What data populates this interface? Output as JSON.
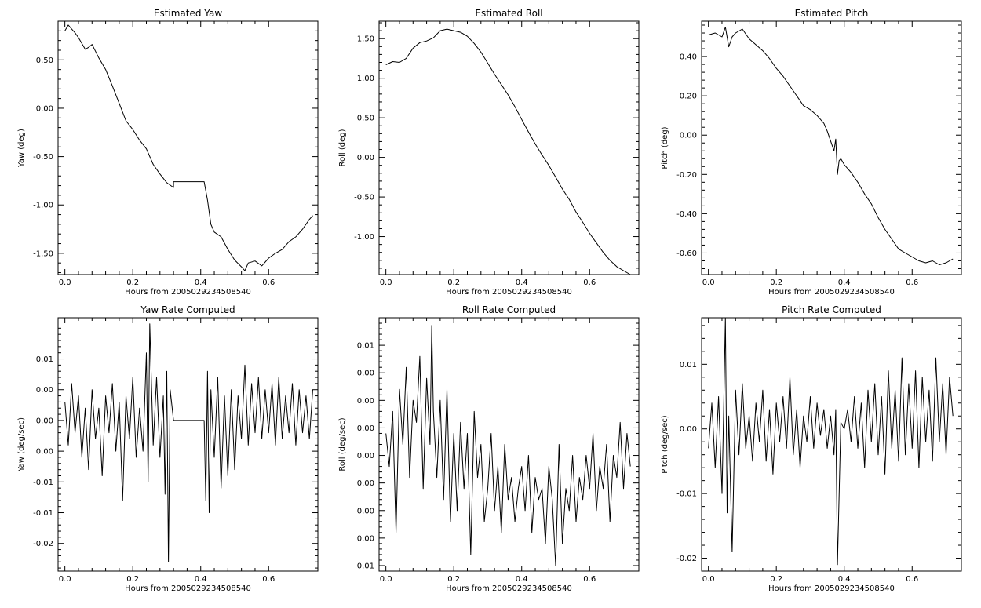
{
  "chart_data": [
    {
      "type": "line",
      "title": "Estimated Yaw",
      "xlabel": "Hours from 2005029234508540",
      "ylabel": "Yaw (deg)",
      "xlim": [
        -0.02,
        0.745
      ],
      "ylim": [
        -1.72,
        0.9
      ],
      "xticks": [
        0.0,
        0.2,
        0.4,
        0.6
      ],
      "xtick_labels": [
        "0.0",
        "0.2",
        "0.4",
        "0.6"
      ],
      "yticks": [
        0.5,
        0.0,
        -0.5,
        -1.0,
        -1.5
      ],
      "ytick_labels": [
        "0.50",
        "0.00",
        "-0.50",
        "-1.00",
        "-1.50"
      ],
      "grid": false,
      "series": [
        {
          "x": [
            0.0,
            0.01,
            0.02,
            0.03,
            0.04,
            0.05,
            0.06,
            0.07,
            0.08,
            0.09,
            0.1,
            0.12,
            0.14,
            0.16,
            0.18,
            0.2,
            0.22,
            0.24,
            0.26,
            0.28,
            0.3,
            0.32,
            0.32,
            0.34,
            0.36,
            0.38,
            0.4,
            0.41,
            0.42,
            0.43,
            0.44,
            0.46,
            0.48,
            0.5,
            0.52,
            0.53,
            0.54,
            0.56,
            0.58,
            0.6,
            0.62,
            0.64,
            0.66,
            0.68,
            0.7,
            0.72,
            0.73
          ],
          "y": [
            0.8,
            0.86,
            0.82,
            0.78,
            0.73,
            0.67,
            0.61,
            0.63,
            0.66,
            0.59,
            0.52,
            0.4,
            0.23,
            0.05,
            -0.13,
            -0.22,
            -0.33,
            -0.42,
            -0.58,
            -0.68,
            -0.77,
            -0.82,
            -0.76,
            -0.76,
            -0.76,
            -0.76,
            -0.76,
            -0.76,
            -0.95,
            -1.2,
            -1.28,
            -1.33,
            -1.46,
            -1.57,
            -1.64,
            -1.68,
            -1.6,
            -1.58,
            -1.63,
            -1.55,
            -1.5,
            -1.46,
            -1.38,
            -1.33,
            -1.25,
            -1.15,
            -1.11
          ]
        }
      ]
    },
    {
      "type": "line",
      "title": "Estimated Roll",
      "xlabel": "Hours from 2005029234508540",
      "ylabel": "Roll (deg)",
      "xlim": [
        -0.02,
        0.745
      ],
      "ylim": [
        -1.48,
        1.72
      ],
      "xticks": [
        0.0,
        0.2,
        0.4,
        0.6
      ],
      "xtick_labels": [
        "0.0",
        "0.2",
        "0.4",
        "0.6"
      ],
      "yticks": [
        1.5,
        1.0,
        0.5,
        0.0,
        -0.5,
        -1.0
      ],
      "ytick_labels": [
        "1.50",
        "1.00",
        "0.50",
        "0.00",
        "-0.50",
        "-1.00"
      ],
      "grid": false,
      "series": [
        {
          "x": [
            0.0,
            0.02,
            0.04,
            0.06,
            0.08,
            0.1,
            0.12,
            0.14,
            0.16,
            0.18,
            0.2,
            0.22,
            0.24,
            0.26,
            0.28,
            0.3,
            0.32,
            0.34,
            0.36,
            0.38,
            0.4,
            0.42,
            0.44,
            0.46,
            0.48,
            0.5,
            0.52,
            0.54,
            0.56,
            0.58,
            0.6,
            0.62,
            0.64,
            0.66,
            0.68,
            0.7,
            0.72
          ],
          "y": [
            1.17,
            1.21,
            1.2,
            1.25,
            1.38,
            1.45,
            1.47,
            1.51,
            1.6,
            1.62,
            1.6,
            1.58,
            1.53,
            1.44,
            1.33,
            1.19,
            1.05,
            0.92,
            0.79,
            0.64,
            0.48,
            0.32,
            0.17,
            0.03,
            -0.1,
            -0.25,
            -0.4,
            -0.53,
            -0.69,
            -0.82,
            -0.96,
            -1.08,
            -1.2,
            -1.3,
            -1.38,
            -1.43,
            -1.48
          ]
        }
      ]
    },
    {
      "type": "line",
      "title": "Estimated Pitch",
      "xlabel": "Hours from 2005029234508540",
      "ylabel": "Pitch (deg)",
      "xlim": [
        -0.02,
        0.745
      ],
      "ylim": [
        -0.71,
        0.58
      ],
      "xticks": [
        0.0,
        0.2,
        0.4,
        0.6
      ],
      "xtick_labels": [
        "0.0",
        "0.2",
        "0.4",
        "0.6"
      ],
      "yticks": [
        0.4,
        0.2,
        0.0,
        -0.2,
        -0.4,
        -0.6
      ],
      "ytick_labels": [
        "0.40",
        "0.20",
        "0.00",
        "-0.20",
        "-0.40",
        "-0.60"
      ],
      "grid": false,
      "series": [
        {
          "x": [
            0.0,
            0.02,
            0.04,
            0.05,
            0.06,
            0.07,
            0.08,
            0.1,
            0.12,
            0.14,
            0.16,
            0.18,
            0.2,
            0.22,
            0.24,
            0.26,
            0.28,
            0.3,
            0.32,
            0.34,
            0.35,
            0.36,
            0.37,
            0.375,
            0.38,
            0.385,
            0.39,
            0.4,
            0.42,
            0.44,
            0.46,
            0.48,
            0.5,
            0.52,
            0.54,
            0.56,
            0.58,
            0.6,
            0.62,
            0.64,
            0.66,
            0.68,
            0.7,
            0.72
          ],
          "y": [
            0.51,
            0.52,
            0.5,
            0.55,
            0.45,
            0.5,
            0.52,
            0.54,
            0.49,
            0.46,
            0.43,
            0.39,
            0.34,
            0.3,
            0.25,
            0.2,
            0.15,
            0.13,
            0.1,
            0.06,
            0.02,
            -0.03,
            -0.08,
            -0.02,
            -0.2,
            -0.13,
            -0.12,
            -0.15,
            -0.19,
            -0.24,
            -0.3,
            -0.35,
            -0.42,
            -0.48,
            -0.53,
            -0.58,
            -0.6,
            -0.62,
            -0.64,
            -0.65,
            -0.64,
            -0.66,
            -0.65,
            -0.63
          ]
        }
      ]
    },
    {
      "type": "line",
      "title": "Yaw Rate Computed",
      "xlabel": "Hours from 2005029234508540",
      "ylabel": "Yaw (deg/sec)",
      "xlim": [
        -0.02,
        0.745
      ],
      "ylim": [
        -0.0245,
        0.0167
      ],
      "xticks": [
        0.0,
        0.2,
        0.4,
        0.6
      ],
      "xtick_labels": [
        "0.0",
        "0.2",
        "0.4",
        "0.6"
      ],
      "yticks": [
        0.01,
        0.005,
        0.0,
        -0.005,
        -0.01,
        -0.015,
        -0.02
      ],
      "ytick_labels": [
        "0.01",
        "0.00",
        "0.00",
        "0.00",
        "-0.01",
        "-0.01",
        "-0.02"
      ],
      "grid": false,
      "series": [
        {
          "x": [
            0.0,
            0.01,
            0.02,
            0.03,
            0.04,
            0.05,
            0.06,
            0.07,
            0.08,
            0.09,
            0.1,
            0.11,
            0.12,
            0.13,
            0.14,
            0.15,
            0.16,
            0.17,
            0.18,
            0.19,
            0.2,
            0.21,
            0.22,
            0.23,
            0.24,
            0.245,
            0.25,
            0.26,
            0.27,
            0.28,
            0.29,
            0.295,
            0.3,
            0.305,
            0.31,
            0.32,
            0.41,
            0.415,
            0.42,
            0.425,
            0.43,
            0.44,
            0.45,
            0.46,
            0.47,
            0.48,
            0.49,
            0.5,
            0.51,
            0.52,
            0.53,
            0.54,
            0.55,
            0.56,
            0.57,
            0.58,
            0.59,
            0.6,
            0.61,
            0.62,
            0.63,
            0.64,
            0.65,
            0.66,
            0.67,
            0.68,
            0.69,
            0.7,
            0.71,
            0.72,
            0.73
          ],
          "y": [
            0.003,
            -0.004,
            0.006,
            -0.002,
            0.004,
            -0.006,
            0.002,
            -0.008,
            0.005,
            -0.003,
            0.002,
            -0.009,
            0.004,
            -0.002,
            0.006,
            -0.005,
            0.003,
            -0.013,
            0.004,
            -0.003,
            0.007,
            -0.006,
            0.002,
            -0.005,
            0.011,
            -0.01,
            0.0157,
            -0.004,
            0.007,
            -0.006,
            0.004,
            -0.012,
            0.008,
            -0.023,
            0.005,
            0.0,
            0.0,
            -0.013,
            0.008,
            -0.015,
            0.005,
            -0.006,
            0.007,
            -0.011,
            0.004,
            -0.009,
            0.005,
            -0.008,
            0.004,
            -0.003,
            0.009,
            -0.004,
            0.006,
            -0.002,
            0.007,
            -0.003,
            0.005,
            -0.002,
            0.006,
            -0.004,
            0.007,
            -0.003,
            0.004,
            -0.002,
            0.006,
            -0.004,
            0.005,
            -0.002,
            0.004,
            -0.003,
            0.005
          ]
        }
      ]
    },
    {
      "type": "line",
      "title": "Roll Rate Computed",
      "xlabel": "Hours from 2005029234508540",
      "ylabel": "Roll (deg/sec)",
      "xlim": [
        -0.02,
        0.745
      ],
      "ylim": [
        -0.0105,
        0.0125
      ],
      "xticks": [
        0.0,
        0.2,
        0.4,
        0.6
      ],
      "xtick_labels": [
        "0.0",
        "0.2",
        "0.4",
        "0.6"
      ],
      "yticks": [
        0.01,
        0.0075,
        0.005,
        0.0025,
        0.0,
        -0.0025,
        -0.005,
        -0.0075,
        -0.01
      ],
      "ytick_labels": [
        "0.01",
        "0.00",
        "0.00",
        "0.00",
        "0.00",
        "0.00",
        "0.00",
        "0.00",
        "-0.01"
      ],
      "grid": false,
      "series": [
        {
          "x": [
            0.0,
            0.01,
            0.02,
            0.03,
            0.04,
            0.05,
            0.06,
            0.07,
            0.08,
            0.09,
            0.1,
            0.11,
            0.12,
            0.13,
            0.135,
            0.14,
            0.15,
            0.16,
            0.17,
            0.18,
            0.19,
            0.2,
            0.21,
            0.22,
            0.23,
            0.24,
            0.25,
            0.26,
            0.27,
            0.28,
            0.29,
            0.3,
            0.31,
            0.32,
            0.33,
            0.34,
            0.35,
            0.36,
            0.37,
            0.38,
            0.39,
            0.4,
            0.41,
            0.42,
            0.43,
            0.44,
            0.45,
            0.46,
            0.47,
            0.48,
            0.49,
            0.5,
            0.51,
            0.52,
            0.53,
            0.54,
            0.55,
            0.56,
            0.57,
            0.58,
            0.59,
            0.6,
            0.61,
            0.62,
            0.63,
            0.64,
            0.65,
            0.66,
            0.67,
            0.68,
            0.69,
            0.7,
            0.71,
            0.72
          ],
          "y": [
            0.002,
            -0.001,
            0.004,
            -0.007,
            0.006,
            0.001,
            0.008,
            -0.002,
            0.005,
            0.003,
            0.009,
            -0.003,
            0.007,
            0.001,
            0.0118,
            0.004,
            -0.002,
            0.005,
            -0.004,
            0.006,
            -0.006,
            0.002,
            -0.005,
            0.003,
            -0.003,
            0.002,
            -0.009,
            0.004,
            -0.002,
            0.001,
            -0.006,
            -0.003,
            0.002,
            -0.005,
            -0.001,
            -0.007,
            0.001,
            -0.004,
            -0.002,
            -0.006,
            -0.003,
            -0.001,
            -0.005,
            0.0,
            -0.007,
            -0.002,
            -0.004,
            -0.003,
            -0.008,
            -0.001,
            -0.004,
            -0.01,
            0.001,
            -0.008,
            -0.003,
            -0.005,
            0.0,
            -0.006,
            -0.002,
            -0.004,
            0.0,
            -0.003,
            0.002,
            -0.005,
            -0.001,
            -0.003,
            0.001,
            -0.006,
            0.0,
            -0.002,
            0.003,
            -0.003,
            0.002,
            -0.001
          ]
        }
      ]
    },
    {
      "type": "line",
      "title": "Pitch Rate Computed",
      "xlabel": "Hours from 2005029234508540",
      "ylabel": "Pitch (deg/sec)",
      "xlim": [
        -0.02,
        0.745
      ],
      "ylim": [
        -0.022,
        0.0172
      ],
      "xticks": [
        0.0,
        0.2,
        0.4,
        0.6
      ],
      "xtick_labels": [
        "0.0",
        "0.2",
        "0.4",
        "0.6"
      ],
      "yticks": [
        0.01,
        0.0,
        -0.01,
        -0.02
      ],
      "ytick_labels": [
        "0.01",
        "0.00",
        "-0.01",
        "-0.02"
      ],
      "grid": false,
      "series": [
        {
          "x": [
            0.0,
            0.01,
            0.02,
            0.03,
            0.04,
            0.045,
            0.05,
            0.055,
            0.06,
            0.07,
            0.08,
            0.09,
            0.1,
            0.11,
            0.12,
            0.13,
            0.14,
            0.15,
            0.16,
            0.17,
            0.18,
            0.19,
            0.2,
            0.21,
            0.22,
            0.23,
            0.24,
            0.25,
            0.26,
            0.27,
            0.28,
            0.29,
            0.3,
            0.31,
            0.32,
            0.33,
            0.34,
            0.35,
            0.36,
            0.37,
            0.375,
            0.38,
            0.39,
            0.4,
            0.41,
            0.42,
            0.43,
            0.44,
            0.45,
            0.46,
            0.47,
            0.48,
            0.49,
            0.5,
            0.51,
            0.52,
            0.53,
            0.54,
            0.55,
            0.56,
            0.57,
            0.58,
            0.59,
            0.6,
            0.61,
            0.62,
            0.63,
            0.64,
            0.65,
            0.66,
            0.67,
            0.68,
            0.69,
            0.7,
            0.71,
            0.72
          ],
          "y": [
            -0.003,
            0.004,
            -0.006,
            0.005,
            -0.01,
            0.003,
            0.0172,
            -0.013,
            0.002,
            -0.019,
            0.006,
            -0.004,
            0.007,
            -0.003,
            0.002,
            -0.005,
            0.004,
            -0.002,
            0.006,
            -0.005,
            0.003,
            -0.007,
            0.004,
            -0.002,
            0.005,
            -0.003,
            0.008,
            -0.004,
            0.003,
            -0.006,
            0.002,
            -0.002,
            0.005,
            -0.003,
            0.004,
            -0.001,
            0.003,
            -0.003,
            0.002,
            -0.004,
            0.003,
            -0.021,
            0.001,
            0.0,
            0.003,
            -0.002,
            0.005,
            -0.003,
            0.004,
            -0.006,
            0.006,
            -0.002,
            0.007,
            -0.004,
            0.005,
            -0.007,
            0.009,
            -0.003,
            0.006,
            -0.005,
            0.011,
            -0.004,
            0.007,
            -0.003,
            0.009,
            -0.006,
            0.008,
            -0.002,
            0.006,
            -0.005,
            0.011,
            -0.002,
            0.007,
            -0.004,
            0.008,
            0.002
          ]
        }
      ]
    }
  ]
}
